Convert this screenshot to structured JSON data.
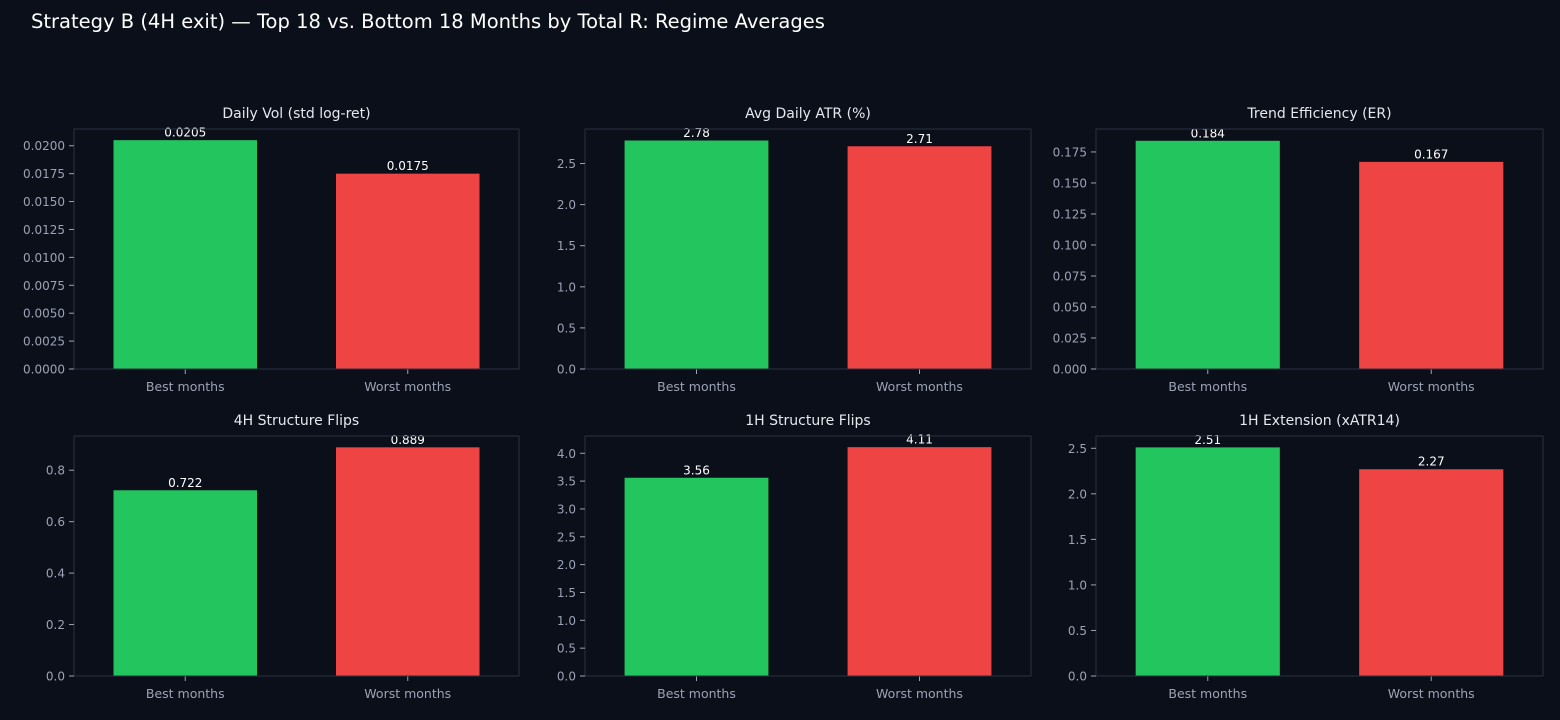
{
  "suptitle": "Strategy B (4H exit) — Top 18 vs. Bottom 18 Months by Total R: Regime Averages",
  "colors": {
    "background": "#0b0f1a",
    "best": "#22c55e",
    "worst": "#ef4444",
    "text": "#ffffff",
    "tick": "#9aa3b5",
    "frame": "#2a3040"
  },
  "chart_data": [
    {
      "type": "bar",
      "title": "Daily Vol (std log-ret)",
      "categories": [
        "Best months",
        "Worst months"
      ],
      "values": [
        0.0205,
        0.0175
      ],
      "value_labels": [
        "0.0205",
        "0.0175"
      ],
      "yticks": [
        0,
        0.0025,
        0.005,
        0.0075,
        0.01,
        0.0125,
        0.015,
        0.0175,
        0.02
      ],
      "ytick_labels": [
        "0.0000",
        "0.0025",
        "0.0050",
        "0.0075",
        "0.0100",
        "0.0125",
        "0.0150",
        "0.0175",
        "0.0200"
      ],
      "ylim": [
        0,
        0.0215
      ],
      "grid": false
    },
    {
      "type": "bar",
      "title": "Avg Daily ATR (%)",
      "categories": [
        "Best months",
        "Worst months"
      ],
      "values": [
        2.78,
        2.71
      ],
      "value_labels": [
        "2.78",
        "2.71"
      ],
      "yticks": [
        0,
        0.5,
        1,
        1.5,
        2,
        2.5
      ],
      "ytick_labels": [
        "0.0",
        "0.5",
        "1.0",
        "1.5",
        "2.0",
        "2.5"
      ],
      "ylim": [
        0,
        2.92
      ],
      "grid": false
    },
    {
      "type": "bar",
      "title": "Trend Efficiency (ER)",
      "categories": [
        "Best months",
        "Worst months"
      ],
      "values": [
        0.184,
        0.167
      ],
      "value_labels": [
        "0.184",
        "0.167"
      ],
      "yticks": [
        0,
        0.025,
        0.05,
        0.075,
        0.1,
        0.125,
        0.15,
        0.175
      ],
      "ytick_labels": [
        "0.000",
        "0.025",
        "0.050",
        "0.075",
        "0.100",
        "0.125",
        "0.150",
        "0.175"
      ],
      "ylim": [
        0,
        0.1935
      ],
      "grid": false
    },
    {
      "type": "bar",
      "title": "4H Structure Flips",
      "categories": [
        "Best months",
        "Worst months"
      ],
      "values": [
        0.722,
        0.889
      ],
      "value_labels": [
        "0.722",
        "0.889"
      ],
      "yticks": [
        0,
        0.2,
        0.4,
        0.6,
        0.8
      ],
      "ytick_labels": [
        "0.0",
        "0.2",
        "0.4",
        "0.6",
        "0.8"
      ],
      "ylim": [
        0,
        0.933
      ],
      "grid": false
    },
    {
      "type": "bar",
      "title": "1H Structure Flips",
      "categories": [
        "Best months",
        "Worst months"
      ],
      "values": [
        3.56,
        4.11
      ],
      "value_labels": [
        "3.56",
        "4.11"
      ],
      "yticks": [
        0,
        0.5,
        1,
        1.5,
        2,
        2.5,
        3,
        3.5,
        4
      ],
      "ytick_labels": [
        "0.0",
        "0.5",
        "1.0",
        "1.5",
        "2.0",
        "2.5",
        "3.0",
        "3.5",
        "4.0"
      ],
      "ylim": [
        0,
        4.31
      ],
      "grid": false
    },
    {
      "type": "bar",
      "title": "1H Extension (xATR14)",
      "categories": [
        "Best months",
        "Worst months"
      ],
      "values": [
        2.51,
        2.27
      ],
      "value_labels": [
        "2.51",
        "2.27"
      ],
      "yticks": [
        0,
        0.5,
        1,
        1.5,
        2,
        2.5
      ],
      "ytick_labels": [
        "0.0",
        "0.5",
        "1.0",
        "1.5",
        "2.0",
        "2.5"
      ],
      "ylim": [
        0,
        2.635
      ],
      "grid": false
    }
  ]
}
